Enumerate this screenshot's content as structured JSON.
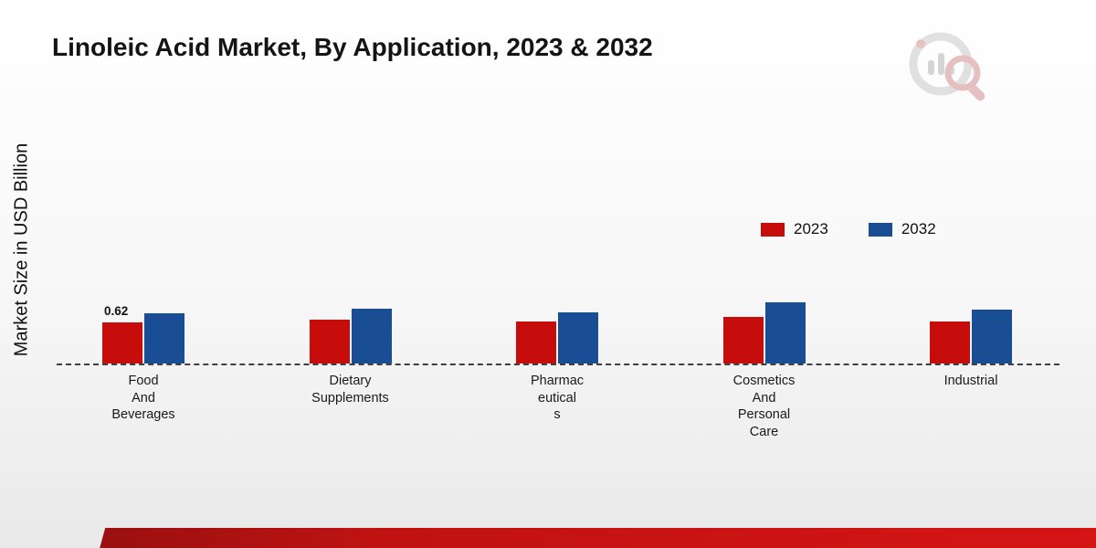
{
  "chart_data": {
    "type": "bar",
    "title": "Linoleic Acid Market, By Application, 2023 & 2032",
    "ylabel": "Market Size in USD Billion",
    "xlabel": "",
    "categories": [
      "Food And Beverages",
      "Dietary Supplements",
      "Pharmaceuticals",
      "Cosmetics And Personal Care",
      "Industrial"
    ],
    "category_lines": [
      [
        "Food",
        "And",
        "Beverages"
      ],
      [
        "Dietary",
        "Supplements"
      ],
      [
        "Pharmac",
        "eutical",
        "s"
      ],
      [
        "Cosmetics",
        "And",
        "Personal",
        "Care"
      ],
      [
        "Industrial"
      ]
    ],
    "series": [
      {
        "name": "2023",
        "color": "#c70c0c",
        "values": [
          0.62,
          0.66,
          0.63,
          0.71,
          0.64
        ]
      },
      {
        "name": "2032",
        "color": "#1a4e94",
        "values": [
          0.76,
          0.83,
          0.77,
          0.93,
          0.81
        ]
      }
    ],
    "data_labels": [
      {
        "series_index": 0,
        "category_index": 0,
        "text": "0.62"
      }
    ],
    "ylim": [
      0,
      4
    ],
    "grid": false,
    "baseline_style": "dashed",
    "legend_position": "upper-right"
  },
  "branding": {
    "logo_name": "market-research-future-logo"
  }
}
